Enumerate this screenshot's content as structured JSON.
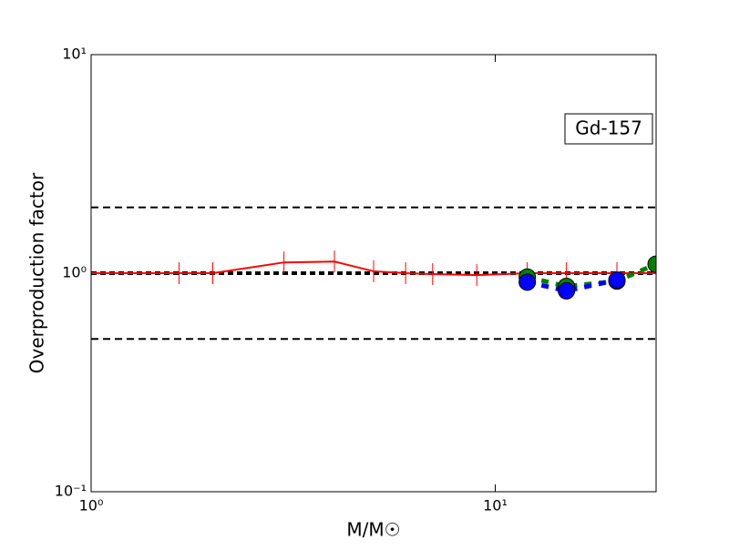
{
  "chart_data": {
    "type": "line",
    "xlabel": "M/M☉",
    "ylabel": "Overproduction factor",
    "annotation": "Gd-157",
    "log_x": true,
    "log_y": true,
    "xlim": [
      1,
      25
    ],
    "ylim": [
      0.1,
      10
    ],
    "xticks": [
      {
        "value": 1,
        "label": "10⁰"
      },
      {
        "value": 10,
        "label": "10¹"
      }
    ],
    "yticks": [
      {
        "value": 0.1,
        "label": "10⁻¹"
      },
      {
        "value": 1,
        "label": "10⁰"
      },
      {
        "value": 10,
        "label": "10¹"
      }
    ],
    "hlines": [
      0.5,
      1,
      2
    ],
    "series": [
      {
        "color": "#ff0000",
        "style": "solid",
        "marker": "vtick",
        "x": [
          1,
          1.65,
          2,
          3,
          4,
          5,
          6,
          7,
          9,
          12,
          15,
          20,
          25
        ],
        "values": [
          1,
          1,
          1,
          1.12,
          1.13,
          1.02,
          1.0,
          0.99,
          0.98,
          1.0,
          1.0,
          1.0,
          1.0
        ]
      },
      {
        "color": "#008000",
        "style": "dotted",
        "marker": "circle",
        "x": [
          12,
          15,
          20,
          25
        ],
        "values": [
          0.96,
          0.87,
          0.92,
          1.1
        ]
      },
      {
        "color": "#0000ff",
        "style": "dotted",
        "marker": "circle",
        "x": [
          12,
          15,
          20
        ],
        "values": [
          0.91,
          0.83,
          0.93
        ]
      }
    ]
  }
}
